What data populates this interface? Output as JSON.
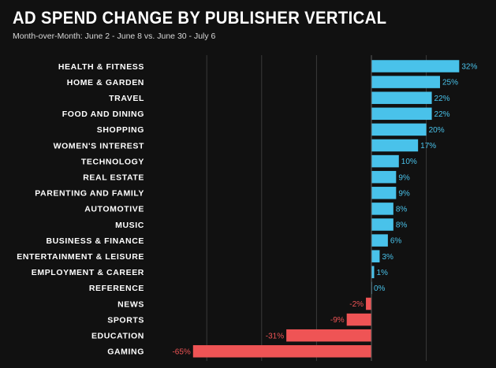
{
  "header": {
    "title": "AD SPEND CHANGE BY PUBLISHER VERTICAL",
    "subtitle": "Month-over-Month: June 2 - June 8 vs. June 30 - July 6"
  },
  "colors": {
    "background": "#111111",
    "positive": "#49c2ea",
    "negative": "#ef5455",
    "grid": "#3a3a3a"
  },
  "chart_data": {
    "type": "bar",
    "orientation": "horizontal",
    "title": "AD SPEND CHANGE BY PUBLISHER VERTICAL",
    "subtitle": "Month-over-Month: June 2 - June 8 vs. June 30 - July 6",
    "categories": [
      "HEALTH & FITNESS",
      "HOME & GARDEN",
      "TRAVEL",
      "FOOD AND DINING",
      "SHOPPING",
      "WOMEN'S INTEREST",
      "TECHNOLOGY",
      "REAL ESTATE",
      "PARENTING AND FAMILY",
      "AUTOMOTIVE",
      "MUSIC",
      "BUSINESS & FINANCE",
      "ENTERTAINMENT & LEISURE",
      "EMPLOYMENT & CAREER",
      "REFERENCE",
      "NEWS",
      "SPORTS",
      "EDUCATION",
      "GAMING"
    ],
    "values": [
      32,
      25,
      22,
      22,
      20,
      17,
      10,
      9,
      9,
      8,
      8,
      6,
      3,
      1,
      0,
      -2,
      -9,
      -31,
      -65
    ],
    "labels": [
      "32%",
      "25%",
      "22%",
      "22%",
      "20%",
      "17%",
      "10%",
      "9%",
      "9%",
      "8%",
      "8%",
      "6%",
      "3%",
      "1%",
      "0%",
      "-2%",
      "-9%",
      "-31%",
      "-65%"
    ],
    "xlim": [
      -65,
      40
    ],
    "grid": true,
    "legend": "none"
  }
}
